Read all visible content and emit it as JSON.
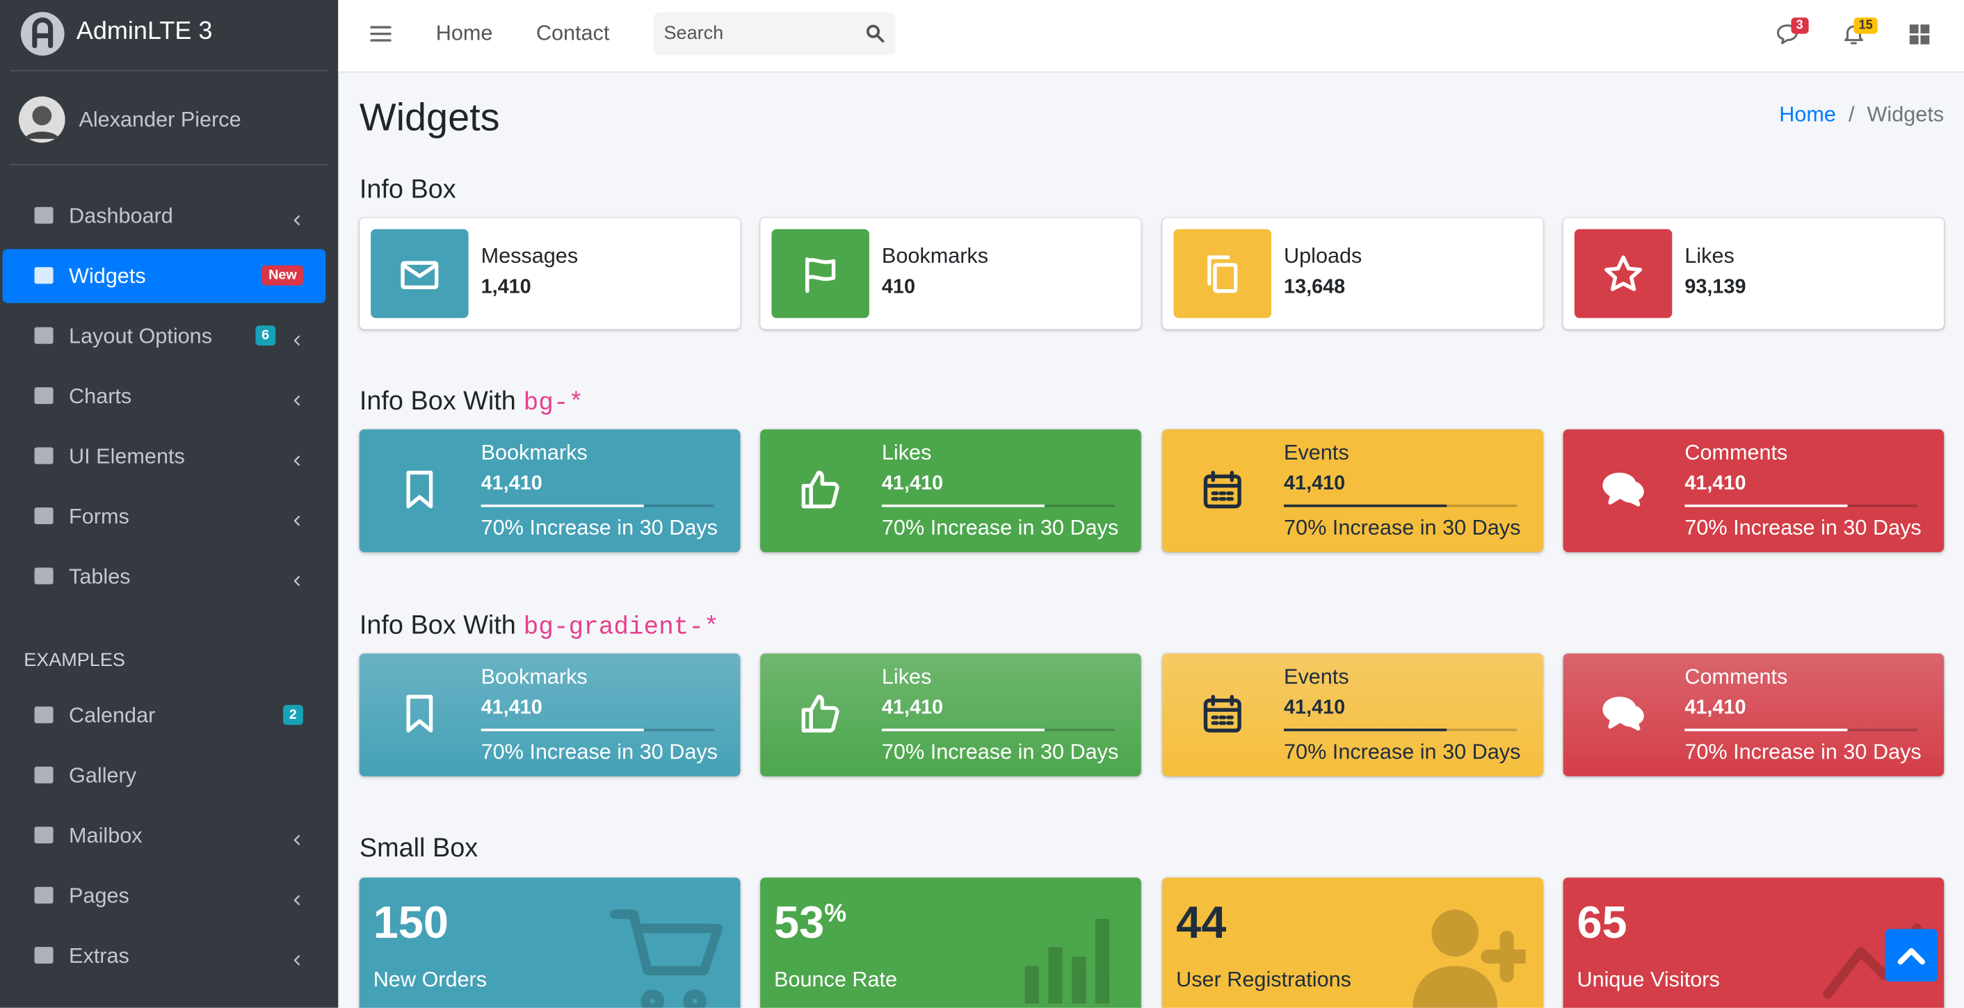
{
  "brand": "AdminLTE 3",
  "user": "Alexander Pierce",
  "nav": [
    {
      "label": "Dashboard",
      "arrow": true
    },
    {
      "label": "Widgets",
      "badge": "New",
      "active": true
    },
    {
      "label": "Layout Options",
      "badge": "6",
      "arrow": true
    },
    {
      "label": "Charts",
      "arrow": true
    },
    {
      "label": "UI Elements",
      "arrow": true
    },
    {
      "label": "Forms",
      "arrow": true
    },
    {
      "label": "Tables",
      "arrow": true
    }
  ],
  "nav_header": "EXAMPLES",
  "nav2": [
    {
      "label": "Calendar",
      "badge": "2"
    },
    {
      "label": "Gallery"
    },
    {
      "label": "Mailbox",
      "arrow": true
    },
    {
      "label": "Pages",
      "arrow": true
    },
    {
      "label": "Extras",
      "arrow": true
    }
  ],
  "topnav": [
    "Home",
    "Contact"
  ],
  "search_placeholder": "Search",
  "messages_badge": "3",
  "notifications_badge": "15",
  "page_title": "Widgets",
  "breadcrumb": [
    "Home",
    "Widgets"
  ],
  "breadcrumb_separator": "/",
  "info_box": {
    "title": "Info Box",
    "boxes": [
      {
        "text": "Messages",
        "number": "1,410"
      },
      {
        "text": "Bookmarks",
        "number": "410"
      },
      {
        "text": "Uploads",
        "number": "13,648"
      },
      {
        "text": "Likes",
        "number": "93,139"
      }
    ]
  },
  "info_box_bg": {
    "title": "Info Box With",
    "code": "bg-*",
    "boxes": [
      {
        "text": "Bookmarks",
        "number": "41,410",
        "progress": 70,
        "description": "70% Increase in 30 Days"
      },
      {
        "text": "Likes",
        "number": "41,410",
        "progress": 70,
        "description": "70% Increase in 30 Days"
      },
      {
        "text": "Events",
        "number": "41,410",
        "progress": 70,
        "description": "70% Increase in 30 Days"
      },
      {
        "text": "Comments",
        "number": "41,410",
        "progress": 70,
        "description": "70% Increase in 30 Days"
      }
    ]
  },
  "info_box_gradient": {
    "title": "Info Box With",
    "code": "bg-gradient-*",
    "boxes": [
      {
        "text": "Bookmarks",
        "number": "41,410",
        "progress": 70,
        "description": "70% Increase in 30 Days"
      },
      {
        "text": "Likes",
        "number": "41,410",
        "progress": 70,
        "description": "70% Increase in 30 Days"
      },
      {
        "text": "Events",
        "number": "41,410",
        "progress": 70,
        "description": "70% Increase in 30 Days"
      },
      {
        "text": "Comments",
        "number": "41,410",
        "progress": 70,
        "description": "70% Increase in 30 Days"
      }
    ]
  },
  "small_box": {
    "title": "Small Box",
    "boxes": [
      {
        "number": "150",
        "text": "New Orders"
      },
      {
        "number": "53",
        "sup": "%",
        "text": "Bounce Rate"
      },
      {
        "number": "44",
        "text": "User Registrations"
      },
      {
        "number": "65",
        "text": "Unique Visitors"
      }
    ]
  }
}
